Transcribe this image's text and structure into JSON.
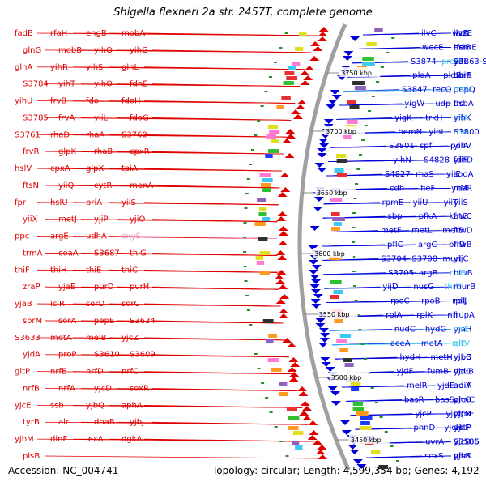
{
  "title": "Shigella flexneri 2a str. 2457T, complete genome",
  "accession": "Accession: NC_004741",
  "summary": "Topology: circular; Length: 4,599,354 bp; Genes: 4,192",
  "colors": {
    "left_strand": "#e00000",
    "right_strand": "#0000d8",
    "rna": "#3cc8f0",
    "pseudo": "#f0a0d8",
    "backbone": "#a0a0a0",
    "tick": "#2a8a2a"
  },
  "scale_ticks": [
    {
      "label": "3750 kbp"
    },
    {
      "label": "3700 kbp"
    },
    {
      "label": "3650 kbp"
    },
    {
      "label": "3600 kbp"
    },
    {
      "label": "3550 kbp"
    },
    {
      "label": "3500 kbp"
    },
    {
      "label": "3450 kbp"
    }
  ],
  "left_labels": [
    "fadB",
    "rfaH",
    "engB",
    "mobA",
    "glnG",
    "mobB",
    "yihQ",
    "yihG",
    "glnA",
    "yihR",
    "yihS",
    "glnL",
    "S3784",
    "yihT",
    "yihO",
    "fdhE",
    "yihU",
    "frvB",
    "fdoI",
    "fdoH",
    "S3785",
    "frvA",
    "yiiL",
    "fdoG",
    "S3761",
    "rhaD",
    "rhaA",
    "S3760",
    "frvR",
    "glpK",
    "rhaB",
    "cpxR",
    "hslV",
    "cpxA",
    "glpX",
    "tpiA",
    "ftsN",
    "yiiQ",
    "cytR",
    "menA",
    "fpr",
    "hslU",
    "priA",
    "yiiS",
    "yiiX",
    "metJ",
    "yjiP",
    "yjiO",
    "ppc",
    "argE",
    "udhA",
    "oxyS",
    "trmA",
    "coaA",
    "S3687",
    "thiG",
    "thiF",
    "thiH",
    "thiE",
    "thiC",
    "zraP",
    "yjaE",
    "purD",
    "purH",
    "yjaB",
    "iclR",
    "sorD",
    "sorC",
    "sorM",
    "sorA",
    "pepE",
    "S3634",
    "S3633",
    "metA",
    "melB",
    "yjcZ",
    "yjdA",
    "proP",
    "S3610",
    "S3609",
    "gltP",
    "nrfE",
    "nrfD",
    "nrfC",
    "nrfB",
    "nrfA",
    "yjcD",
    "soxR",
    "yjcE",
    "ssb",
    "yjbQ",
    "aphA",
    "tyrB",
    "alr",
    "dnaB",
    "yjbJ",
    "yjbM",
    "dinF",
    "lexA",
    "dgkA",
    "plsB"
  ],
  "right_labels": [
    "ilvC",
    "wzzE",
    "ilvA",
    "ilvD",
    "wecE",
    "rfe",
    "asIB",
    "hemE",
    "S3874",
    "proM",
    "yifL",
    "S3863-S3875",
    "pldA",
    "pldB",
    "corA",
    "ubiE",
    "S3847",
    "recQ",
    "pepQ",
    "rrsA",
    "yigW",
    "udp",
    "frc",
    "dsbA",
    "yigK",
    "trkH",
    "rrfA",
    "yihK",
    "hemN",
    "yihL",
    "rrlA",
    "S3800",
    "S3801",
    "spf",
    "polA",
    "yihV",
    "yihN",
    "S4828",
    "fdhD",
    "yiiF",
    "S4827",
    "rhaS",
    "yiiE",
    "sodA",
    "cdh",
    "fieF",
    "yiiM",
    "rhaR",
    "rpmE",
    "yiiU",
    "yiiT",
    "yiiS",
    "sbp",
    "pfkA",
    "katG",
    "frwC",
    "metF",
    "metL",
    "metB",
    "frwD",
    "pflC",
    "argC",
    "pflD",
    "frwB",
    "S3704",
    "S3708",
    "murI",
    "yijC",
    "S3705",
    "argB",
    "rrsB",
    "btuB",
    "yijD",
    "nusG",
    "thrU",
    "murB",
    "rpoC",
    "rpoB",
    "rplL",
    "rplJ",
    "rplA",
    "rplK",
    "nfi",
    "hupA",
    "nudC",
    "hydG",
    "yjaH",
    "rrsE",
    "aceA",
    "metA",
    "rrlE",
    "gltV",
    "hydH",
    "metH",
    "yjbB",
    "yjbC",
    "yjdF",
    "fumB",
    "dcuB",
    "yjdG",
    "melR",
    "yjdE",
    "adiY",
    "adiA",
    "basR",
    "basS",
    "phnC",
    "yjcO",
    "yjcP",
    "yjcQ",
    "yjcR",
    "phnE",
    "phnD",
    "yjcH",
    "yjcF",
    "actP",
    "uvrA",
    "S3585",
    "S3586",
    "yjcB",
    "soxS",
    "qor",
    "yjbK",
    "plsB"
  ]
}
